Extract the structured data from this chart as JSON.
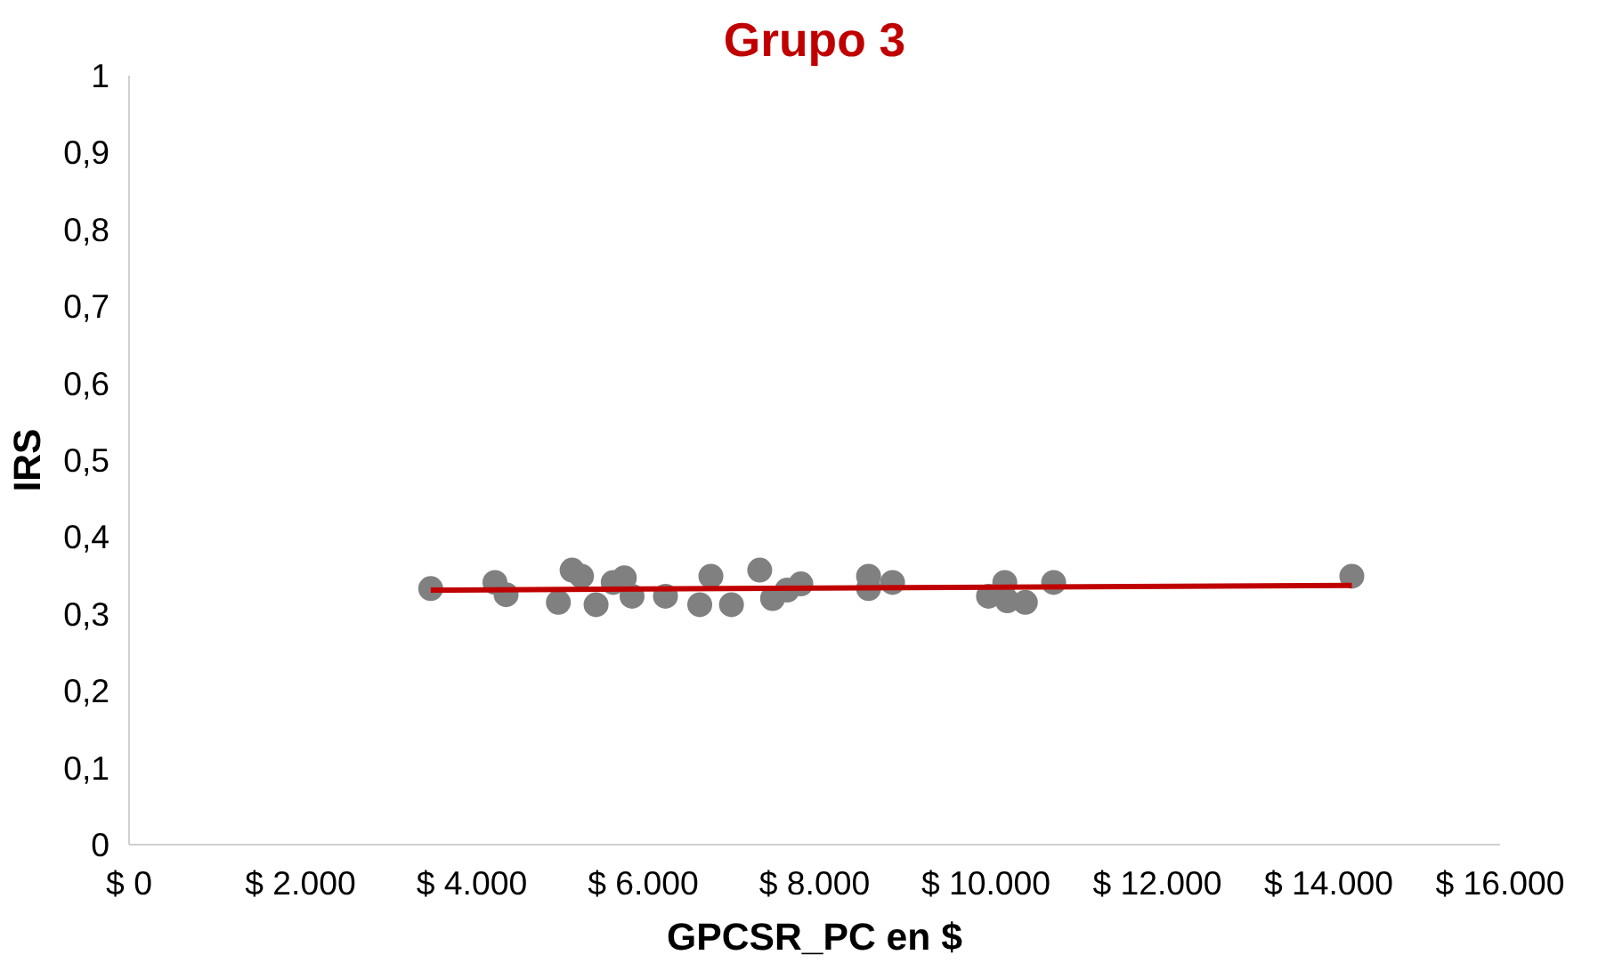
{
  "chart_data": {
    "type": "scatter",
    "title": "Grupo 3",
    "xlabel": "GPCSR_PC en $",
    "ylabel": "IRS",
    "xlim": [
      0,
      16000
    ],
    "ylim": [
      0,
      1
    ],
    "xticks": [
      {
        "value": 0,
        "label": "$ 0"
      },
      {
        "value": 2000,
        "label": "$ 2.000"
      },
      {
        "value": 4000,
        "label": "$ 4.000"
      },
      {
        "value": 6000,
        "label": "$ 6.000"
      },
      {
        "value": 8000,
        "label": "$ 8.000"
      },
      {
        "value": 10000,
        "label": "$ 10.000"
      },
      {
        "value": 12000,
        "label": "$ 12.000"
      },
      {
        "value": 14000,
        "label": "$ 14.000"
      },
      {
        "value": 16000,
        "label": "$ 16.000"
      }
    ],
    "yticks": [
      0,
      {
        "value": 0.1,
        "label": "0,1"
      },
      {
        "value": 0.2,
        "label": "0,2"
      },
      {
        "value": 0.3,
        "label": "0,3"
      },
      {
        "value": 0.4,
        "label": "0,4"
      },
      {
        "value": 0.5,
        "label": "0,5"
      },
      {
        "value": 0.6,
        "label": "0,6"
      },
      {
        "value": 0.7,
        "label": "0,7"
      },
      {
        "value": 0.8,
        "label": "0,8"
      },
      {
        "value": 0.9,
        "label": "0,9"
      },
      1
    ],
    "grid": false,
    "series": [
      {
        "marker": "circle",
        "color": "#808080",
        "x": [
          3520,
          4270,
          4400,
          5010,
          5170,
          5280,
          5450,
          5650,
          5780,
          5870,
          6260,
          6660,
          6790,
          7030,
          7360,
          7510,
          7680,
          7840,
          8630,
          8630,
          8910,
          10030,
          10220,
          10250,
          10460,
          10790,
          14270
        ],
        "values": [
          0.333,
          0.341,
          0.325,
          0.315,
          0.357,
          0.349,
          0.312,
          0.341,
          0.347,
          0.323,
          0.323,
          0.312,
          0.349,
          0.312,
          0.357,
          0.32,
          0.331,
          0.339,
          0.349,
          0.333,
          0.341,
          0.323,
          0.341,
          0.317,
          0.315,
          0.341,
          0.349
        ]
      },
      {
        "type": "line",
        "color": "#c00000",
        "x": [
          3520,
          14270
        ],
        "values": [
          0.331,
          0.337
        ]
      }
    ]
  }
}
